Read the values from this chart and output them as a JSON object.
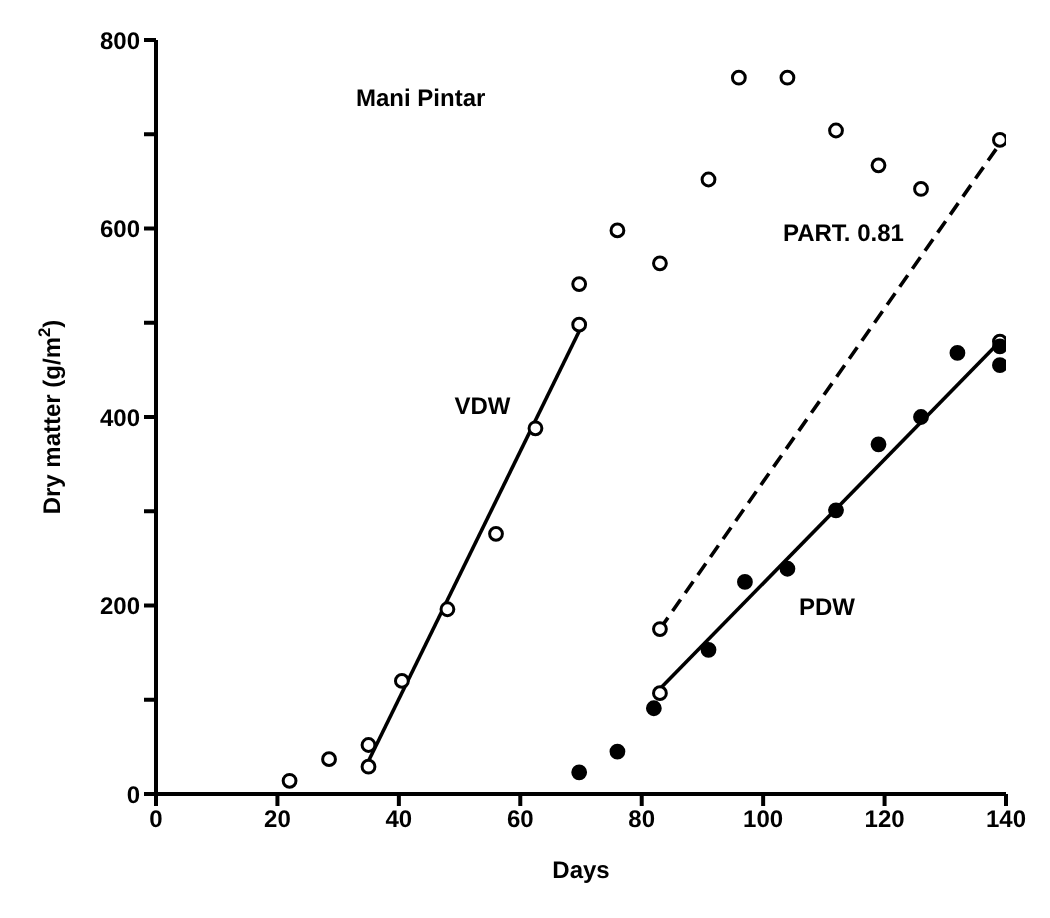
{
  "chart_data": {
    "type": "scatter",
    "xlabel": "Days",
    "ylabel": "Dry matter (g/m$^{2}$)",
    "xlim": [
      0,
      140
    ],
    "xticks": [
      0,
      20,
      40,
      60,
      80,
      100,
      120,
      140
    ],
    "ylim": [
      0,
      800
    ],
    "yticks": [
      0,
      {
        "value": 100,
        "label": null
      },
      200,
      {
        "value": 300,
        "label": null
      },
      400,
      {
        "value": 500,
        "label": null
      },
      600,
      {
        "value": 700,
        "label": null
      },
      800
    ],
    "grid": false,
    "legend": false,
    "series": [
      {
        "type": "scatter",
        "marker": "circle",
        "color": "#000000",
        "x": [
          22,
          28.5,
          35,
          35,
          40.5,
          48,
          56,
          62.5,
          69.7,
          69.7,
          76,
          83,
          91,
          96,
          104,
          112,
          119,
          126,
          139
        ],
        "values": [
          14,
          37,
          52,
          29,
          120,
          196,
          276,
          388,
          498,
          541,
          598,
          563,
          652,
          760,
          760,
          704,
          667,
          642,
          694
        ]
      },
      {
        "type": "scatter",
        "marker": "circle",
        "color": "#000000",
        "x": [
          83,
          83,
          139
        ],
        "values": [
          175,
          107,
          480
        ]
      },
      {
        "type": "scatter",
        "marker": "circle",
        "color": "#000000",
        "x": [
          69.7,
          76,
          82,
          91,
          97,
          104,
          112,
          119,
          126,
          132,
          139,
          139
        ],
        "values": [
          23,
          45,
          91,
          153,
          225,
          239,
          301,
          371,
          400,
          468,
          455,
          475
        ]
      },
      {
        "type": "line",
        "name": "VDW",
        "marker": "none",
        "line_style": "solid",
        "color": "#000000",
        "x": [
          35,
          70
        ],
        "values": [
          35,
          495
        ]
      },
      {
        "type": "line",
        "name": "PART. 0.81",
        "marker": "none",
        "line_style": "dashed",
        "color": "#000000",
        "x": [
          83,
          139
        ],
        "values": [
          175,
          690
        ]
      },
      {
        "type": "line",
        "name": "PDW",
        "marker": "none",
        "line_style": "solid",
        "color": "#000000",
        "x": [
          82,
          139
        ],
        "values": [
          105,
          480
        ]
      }
    ],
    "annotations": [
      "Mani Pintar"
    ]
  }
}
